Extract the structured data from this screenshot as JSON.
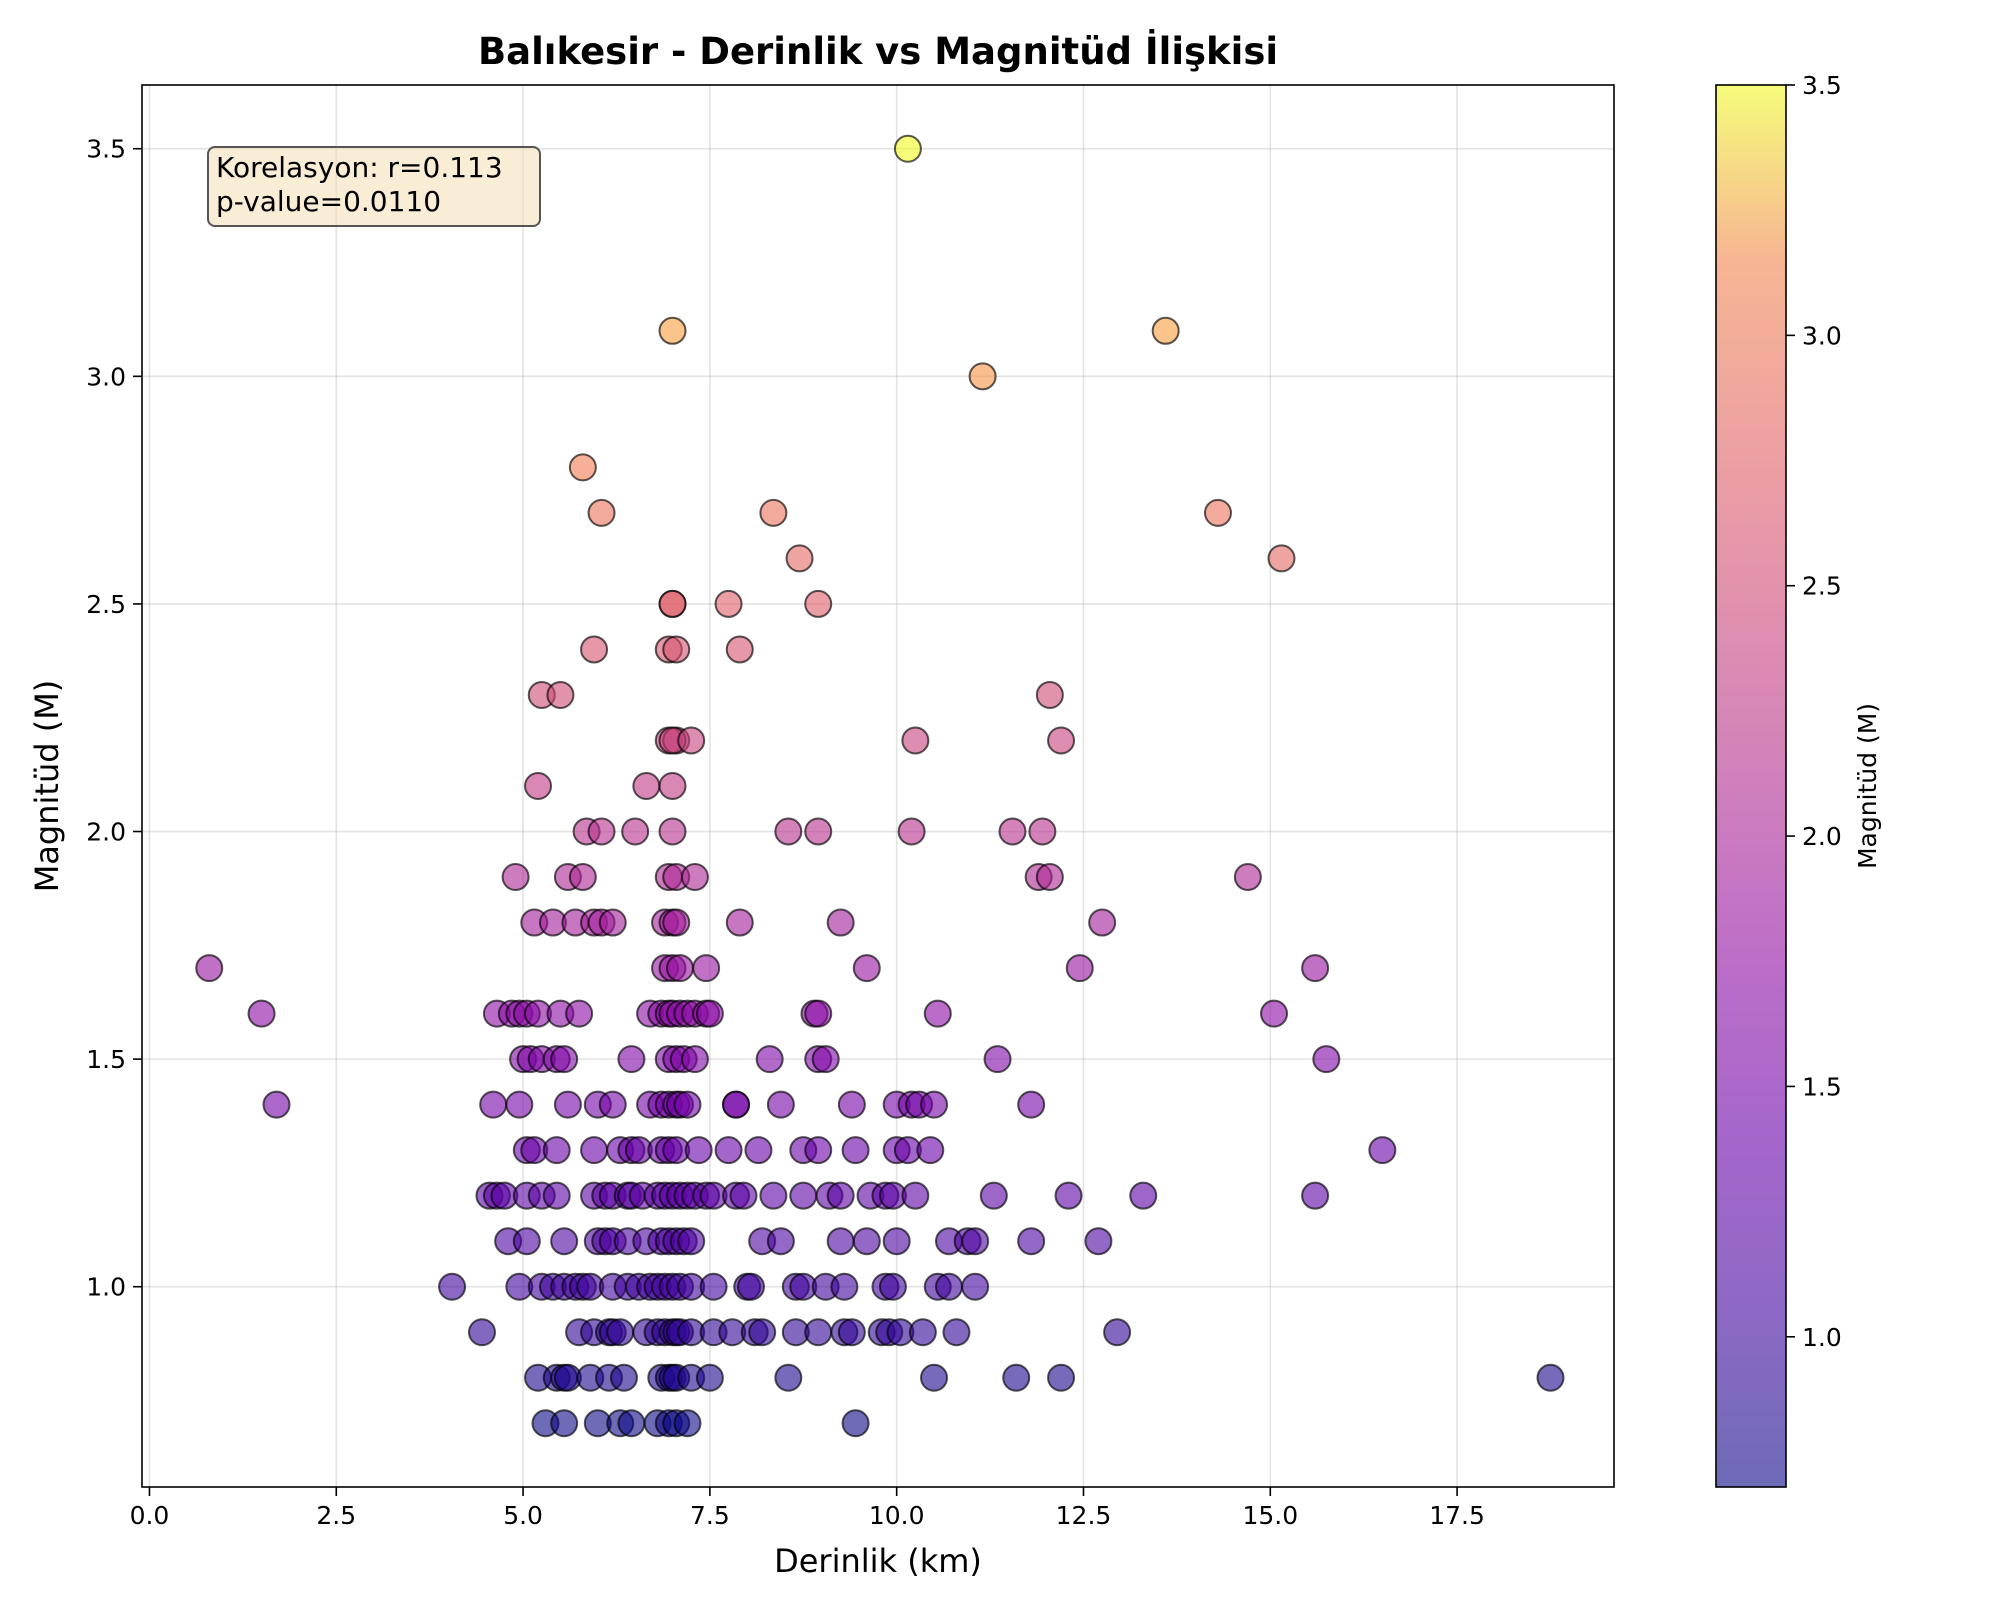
{
  "chart_data": {
    "type": "scatter",
    "title": "Balıkesir - Derinlik vs Magnitüd İlişkisi",
    "xlabel": "Derinlik (km)",
    "ylabel": "Magnitüd (M)",
    "xlim": [
      -0.1,
      19.6
    ],
    "ylim": [
      0.56,
      3.64
    ],
    "x_ticks": [
      0.0,
      2.5,
      5.0,
      7.5,
      10.0,
      12.5,
      15.0,
      17.5
    ],
    "x_tick_labels": [
      "0.0",
      "2.5",
      "5.0",
      "7.5",
      "10.0",
      "12.5",
      "15.0",
      "17.5"
    ],
    "y_ticks": [
      1.0,
      1.5,
      2.0,
      2.5,
      3.0,
      3.5
    ],
    "y_tick_labels": [
      "1.0",
      "1.5",
      "2.0",
      "2.5",
      "3.0",
      "3.5"
    ],
    "grid": true,
    "colormap": "plasma",
    "colorbar": {
      "label": "Magnitüd (M)",
      "range": [
        0.7,
        3.5
      ],
      "ticks": [
        1.0,
        1.5,
        2.0,
        2.5,
        3.0,
        3.5
      ],
      "tick_labels": [
        "1.0",
        "1.5",
        "2.0",
        "2.5",
        "3.0",
        "3.5"
      ]
    },
    "annotation": {
      "line1": "Korelasyon: r=0.113",
      "line2": "p-value=0.0110",
      "placement": "top-left",
      "background": "#f5deb3",
      "border": "#555555"
    },
    "marker_alpha": 0.6,
    "marker_edge": "#000000",
    "points": [
      [
        10.15,
        3.5
      ],
      [
        7.0,
        3.1
      ],
      [
        13.6,
        3.1
      ],
      [
        11.15,
        3.0
      ],
      [
        5.8,
        2.8
      ],
      [
        6.05,
        2.7
      ],
      [
        8.35,
        2.7
      ],
      [
        14.3,
        2.7
      ],
      [
        8.7,
        2.6
      ],
      [
        15.15,
        2.6
      ],
      [
        7.0,
        2.5
      ],
      [
        7.0,
        2.5
      ],
      [
        7.75,
        2.5
      ],
      [
        8.95,
        2.5
      ],
      [
        5.95,
        2.4
      ],
      [
        6.95,
        2.4
      ],
      [
        7.05,
        2.4
      ],
      [
        7.9,
        2.4
      ],
      [
        5.25,
        2.3
      ],
      [
        5.5,
        2.3
      ],
      [
        12.05,
        2.3
      ],
      [
        6.95,
        2.2
      ],
      [
        7.05,
        2.2
      ],
      [
        7.0,
        2.2
      ],
      [
        7.25,
        2.2
      ],
      [
        10.25,
        2.2
      ],
      [
        12.2,
        2.2
      ],
      [
        5.2,
        2.1
      ],
      [
        6.65,
        2.1
      ],
      [
        7.0,
        2.1
      ],
      [
        5.85,
        2.0
      ],
      [
        6.05,
        2.0
      ],
      [
        6.5,
        2.0
      ],
      [
        7.0,
        2.0
      ],
      [
        8.55,
        2.0
      ],
      [
        8.95,
        2.0
      ],
      [
        10.2,
        2.0
      ],
      [
        11.55,
        2.0
      ],
      [
        11.95,
        2.0
      ],
      [
        4.9,
        1.9
      ],
      [
        5.6,
        1.9
      ],
      [
        5.8,
        1.9
      ],
      [
        6.95,
        1.9
      ],
      [
        7.05,
        1.9
      ],
      [
        7.3,
        1.9
      ],
      [
        11.9,
        1.9
      ],
      [
        12.05,
        1.9
      ],
      [
        14.7,
        1.9
      ],
      [
        5.15,
        1.8
      ],
      [
        5.4,
        1.8
      ],
      [
        5.7,
        1.8
      ],
      [
        5.95,
        1.8
      ],
      [
        6.05,
        1.8
      ],
      [
        6.2,
        1.8
      ],
      [
        6.9,
        1.8
      ],
      [
        7.0,
        1.8
      ],
      [
        7.05,
        1.8
      ],
      [
        7.9,
        1.8
      ],
      [
        9.25,
        1.8
      ],
      [
        12.75,
        1.8
      ],
      [
        0.8,
        1.7
      ],
      [
        6.9,
        1.7
      ],
      [
        7.0,
        1.7
      ],
      [
        7.1,
        1.7
      ],
      [
        7.45,
        1.7
      ],
      [
        9.6,
        1.7
      ],
      [
        12.45,
        1.7
      ],
      [
        15.6,
        1.7
      ],
      [
        1.5,
        1.6
      ],
      [
        4.65,
        1.6
      ],
      [
        4.85,
        1.6
      ],
      [
        4.95,
        1.6
      ],
      [
        5.05,
        1.6
      ],
      [
        5.2,
        1.6
      ],
      [
        5.5,
        1.6
      ],
      [
        5.75,
        1.6
      ],
      [
        6.7,
        1.6
      ],
      [
        6.85,
        1.6
      ],
      [
        6.95,
        1.6
      ],
      [
        7.0,
        1.6
      ],
      [
        7.1,
        1.6
      ],
      [
        7.2,
        1.6
      ],
      [
        7.3,
        1.6
      ],
      [
        7.45,
        1.6
      ],
      [
        7.5,
        1.6
      ],
      [
        8.9,
        1.6
      ],
      [
        8.95,
        1.6
      ],
      [
        10.55,
        1.6
      ],
      [
        15.05,
        1.6
      ],
      [
        5.0,
        1.5
      ],
      [
        5.1,
        1.5
      ],
      [
        5.25,
        1.5
      ],
      [
        5.45,
        1.5
      ],
      [
        5.55,
        1.5
      ],
      [
        6.45,
        1.5
      ],
      [
        6.95,
        1.5
      ],
      [
        7.05,
        1.5
      ],
      [
        7.15,
        1.5
      ],
      [
        7.3,
        1.5
      ],
      [
        8.3,
        1.5
      ],
      [
        8.95,
        1.5
      ],
      [
        9.05,
        1.5
      ],
      [
        11.35,
        1.5
      ],
      [
        15.75,
        1.5
      ],
      [
        1.7,
        1.4
      ],
      [
        4.6,
        1.4
      ],
      [
        4.95,
        1.4
      ],
      [
        5.6,
        1.4
      ],
      [
        6.0,
        1.4
      ],
      [
        6.2,
        1.4
      ],
      [
        6.7,
        1.4
      ],
      [
        6.85,
        1.4
      ],
      [
        6.95,
        1.4
      ],
      [
        7.05,
        1.4
      ],
      [
        7.1,
        1.4
      ],
      [
        7.2,
        1.4
      ],
      [
        7.85,
        1.4
      ],
      [
        7.85,
        1.4
      ],
      [
        8.45,
        1.4
      ],
      [
        9.4,
        1.4
      ],
      [
        10.0,
        1.4
      ],
      [
        10.2,
        1.4
      ],
      [
        10.3,
        1.4
      ],
      [
        10.5,
        1.4
      ],
      [
        11.8,
        1.4
      ],
      [
        5.05,
        1.3
      ],
      [
        5.15,
        1.3
      ],
      [
        5.45,
        1.3
      ],
      [
        5.95,
        1.3
      ],
      [
        6.3,
        1.3
      ],
      [
        6.45,
        1.3
      ],
      [
        6.55,
        1.3
      ],
      [
        6.85,
        1.3
      ],
      [
        6.95,
        1.3
      ],
      [
        7.05,
        1.3
      ],
      [
        7.35,
        1.3
      ],
      [
        7.75,
        1.3
      ],
      [
        8.15,
        1.3
      ],
      [
        8.75,
        1.3
      ],
      [
        8.95,
        1.3
      ],
      [
        9.45,
        1.3
      ],
      [
        10.0,
        1.3
      ],
      [
        10.15,
        1.3
      ],
      [
        10.45,
        1.3
      ],
      [
        16.5,
        1.3
      ],
      [
        4.55,
        1.2
      ],
      [
        4.65,
        1.2
      ],
      [
        4.75,
        1.2
      ],
      [
        5.05,
        1.2
      ],
      [
        5.25,
        1.2
      ],
      [
        5.45,
        1.2
      ],
      [
        5.95,
        1.2
      ],
      [
        6.1,
        1.2
      ],
      [
        6.2,
        1.2
      ],
      [
        6.4,
        1.2
      ],
      [
        6.45,
        1.2
      ],
      [
        6.6,
        1.2
      ],
      [
        6.8,
        1.2
      ],
      [
        6.9,
        1.2
      ],
      [
        7.0,
        1.2
      ],
      [
        7.1,
        1.2
      ],
      [
        7.2,
        1.2
      ],
      [
        7.3,
        1.2
      ],
      [
        7.45,
        1.2
      ],
      [
        7.55,
        1.2
      ],
      [
        7.85,
        1.2
      ],
      [
        7.95,
        1.2
      ],
      [
        8.35,
        1.2
      ],
      [
        8.75,
        1.2
      ],
      [
        9.1,
        1.2
      ],
      [
        9.25,
        1.2
      ],
      [
        9.65,
        1.2
      ],
      [
        9.85,
        1.2
      ],
      [
        9.95,
        1.2
      ],
      [
        10.25,
        1.2
      ],
      [
        11.3,
        1.2
      ],
      [
        12.3,
        1.2
      ],
      [
        13.3,
        1.2
      ],
      [
        15.6,
        1.2
      ],
      [
        4.8,
        1.1
      ],
      [
        5.05,
        1.1
      ],
      [
        5.55,
        1.1
      ],
      [
        6.0,
        1.1
      ],
      [
        6.1,
        1.1
      ],
      [
        6.2,
        1.1
      ],
      [
        6.4,
        1.1
      ],
      [
        6.65,
        1.1
      ],
      [
        6.85,
        1.1
      ],
      [
        6.95,
        1.1
      ],
      [
        7.05,
        1.1
      ],
      [
        7.15,
        1.1
      ],
      [
        7.25,
        1.1
      ],
      [
        8.2,
        1.1
      ],
      [
        8.45,
        1.1
      ],
      [
        9.25,
        1.1
      ],
      [
        9.6,
        1.1
      ],
      [
        10.0,
        1.1
      ],
      [
        10.7,
        1.1
      ],
      [
        10.95,
        1.1
      ],
      [
        11.05,
        1.1
      ],
      [
        11.8,
        1.1
      ],
      [
        12.7,
        1.1
      ],
      [
        4.05,
        1.0
      ],
      [
        4.95,
        1.0
      ],
      [
        5.25,
        1.0
      ],
      [
        5.4,
        1.0
      ],
      [
        5.55,
        1.0
      ],
      [
        5.7,
        1.0
      ],
      [
        5.8,
        1.0
      ],
      [
        5.9,
        1.0
      ],
      [
        6.2,
        1.0
      ],
      [
        6.4,
        1.0
      ],
      [
        6.55,
        1.0
      ],
      [
        6.7,
        1.0
      ],
      [
        6.8,
        1.0
      ],
      [
        6.9,
        1.0
      ],
      [
        7.0,
        1.0
      ],
      [
        7.1,
        1.0
      ],
      [
        7.25,
        1.0
      ],
      [
        7.55,
        1.0
      ],
      [
        8.0,
        1.0
      ],
      [
        8.05,
        1.0
      ],
      [
        8.65,
        1.0
      ],
      [
        8.75,
        1.0
      ],
      [
        9.05,
        1.0
      ],
      [
        9.3,
        1.0
      ],
      [
        9.85,
        1.0
      ],
      [
        9.95,
        1.0
      ],
      [
        10.55,
        1.0
      ],
      [
        10.7,
        1.0
      ],
      [
        11.05,
        1.0
      ],
      [
        4.45,
        0.9
      ],
      [
        5.75,
        0.9
      ],
      [
        5.95,
        0.9
      ],
      [
        6.15,
        0.9
      ],
      [
        6.2,
        0.9
      ],
      [
        6.3,
        0.9
      ],
      [
        6.65,
        0.9
      ],
      [
        6.8,
        0.9
      ],
      [
        6.9,
        0.9
      ],
      [
        7.0,
        0.9
      ],
      [
        7.05,
        0.9
      ],
      [
        7.1,
        0.9
      ],
      [
        7.25,
        0.9
      ],
      [
        7.55,
        0.9
      ],
      [
        7.8,
        0.9
      ],
      [
        8.1,
        0.9
      ],
      [
        8.2,
        0.9
      ],
      [
        8.65,
        0.9
      ],
      [
        8.95,
        0.9
      ],
      [
        9.3,
        0.9
      ],
      [
        9.4,
        0.9
      ],
      [
        9.8,
        0.9
      ],
      [
        9.9,
        0.9
      ],
      [
        10.05,
        0.9
      ],
      [
        10.35,
        0.9
      ],
      [
        10.8,
        0.9
      ],
      [
        12.95,
        0.9
      ],
      [
        5.2,
        0.8
      ],
      [
        5.45,
        0.8
      ],
      [
        5.55,
        0.8
      ],
      [
        5.6,
        0.8
      ],
      [
        5.9,
        0.8
      ],
      [
        6.15,
        0.8
      ],
      [
        6.35,
        0.8
      ],
      [
        6.85,
        0.8
      ],
      [
        6.95,
        0.8
      ],
      [
        7.0,
        0.8
      ],
      [
        7.05,
        0.8
      ],
      [
        7.25,
        0.8
      ],
      [
        7.5,
        0.8
      ],
      [
        8.55,
        0.8
      ],
      [
        10.5,
        0.8
      ],
      [
        11.6,
        0.8
      ],
      [
        12.2,
        0.8
      ],
      [
        18.75,
        0.8
      ],
      [
        5.3,
        0.7
      ],
      [
        5.55,
        0.7
      ],
      [
        6.0,
        0.7
      ],
      [
        6.3,
        0.7
      ],
      [
        6.45,
        0.7
      ],
      [
        6.8,
        0.7
      ],
      [
        6.95,
        0.7
      ],
      [
        7.05,
        0.7
      ],
      [
        7.2,
        0.7
      ],
      [
        9.45,
        0.7
      ]
    ]
  }
}
